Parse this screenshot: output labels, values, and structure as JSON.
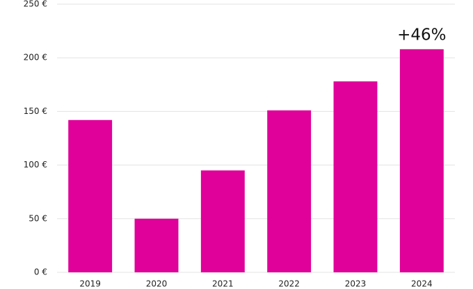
{
  "chart_data": {
    "type": "bar",
    "categories": [
      "2019",
      "2020",
      "2021",
      "2022",
      "2023",
      "2024"
    ],
    "values": [
      142,
      50,
      95,
      151,
      178,
      208
    ],
    "color": "#e0009a",
    "annotation": "+46%",
    "ylim": [
      0,
      250
    ],
    "yticks": [
      {
        "value": 0,
        "label": "0 €"
      },
      {
        "value": 50,
        "label": "50 €"
      },
      {
        "value": 100,
        "label": "100 €"
      },
      {
        "value": 150,
        "label": "150 €"
      },
      {
        "value": 200,
        "label": "200 €"
      },
      {
        "value": 250,
        "label": "250 €"
      }
    ],
    "grid": true
  }
}
